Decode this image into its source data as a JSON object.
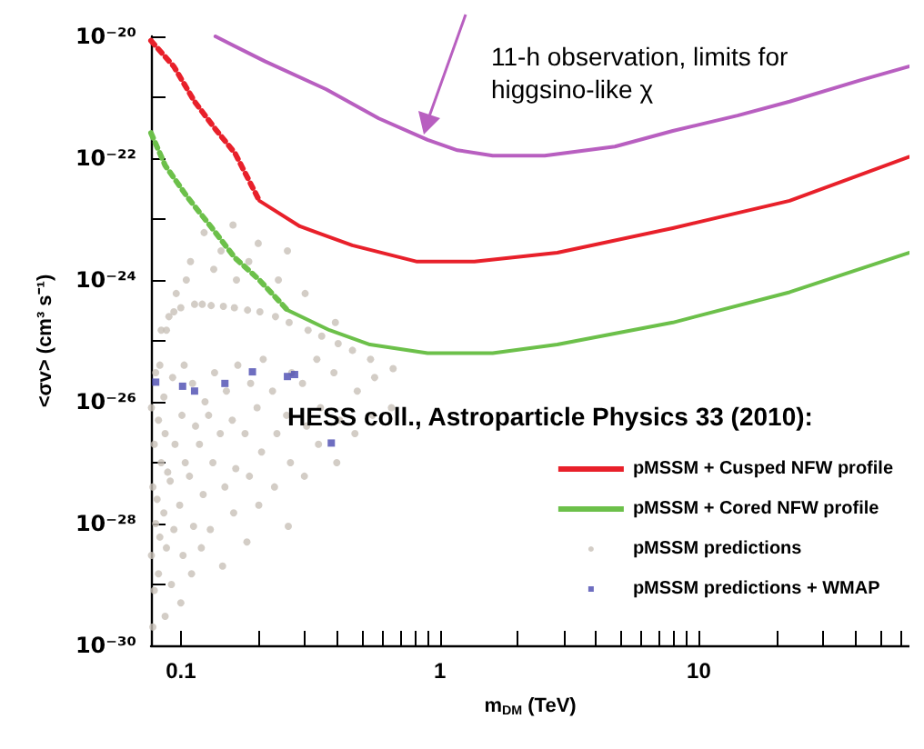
{
  "chart_data": {
    "type": "line",
    "xlabel": "m$_{DM}$ (TeV)",
    "ylabel": "<σv> (cm³ s⁻¹)",
    "log": "xy",
    "xlim": [
      0.0767,
      65
    ],
    "ylim": [
      1e-30,
      1e-20
    ],
    "xticks": [
      0.1,
      {
        "value": 0.2,
        "label": null
      },
      {
        "value": 0.3,
        "label": null
      },
      {
        "value": 0.4,
        "label": null
      },
      {
        "value": 0.5,
        "label": null
      },
      {
        "value": 0.6,
        "label": null
      },
      {
        "value": 0.7,
        "label": null
      },
      {
        "value": 0.8,
        "label": null
      },
      {
        "value": 0.9,
        "label": null
      },
      1,
      {
        "value": 2,
        "label": null
      },
      {
        "value": 3,
        "label": null
      },
      {
        "value": 4,
        "label": null
      },
      {
        "value": 5,
        "label": null
      },
      {
        "value": 6,
        "label": null
      },
      {
        "value": 7,
        "label": null
      },
      {
        "value": 8,
        "label": null
      },
      {
        "value": 9,
        "label": null
      },
      10,
      {
        "value": 20,
        "label": null
      },
      {
        "value": 30,
        "label": null
      },
      {
        "value": 40,
        "label": null
      },
      {
        "value": 50,
        "label": null
      },
      {
        "value": 60,
        "label": null
      }
    ],
    "yticks": [
      {
        "value": 1e-30,
        "label": "10⁻³⁰"
      },
      {
        "value": 1e-29,
        "label": null
      },
      {
        "value": 1e-28,
        "label": "10⁻²⁸"
      },
      {
        "value": 1e-27,
        "label": null
      },
      {
        "value": 1e-26,
        "label": "10⁻²⁶"
      },
      {
        "value": 1e-25,
        "label": null
      },
      {
        "value": 1e-24,
        "label": "10⁻²⁴"
      },
      {
        "value": 1e-23,
        "label": null
      },
      {
        "value": 1e-22,
        "label": "10⁻²²"
      },
      {
        "value": 1e-21,
        "label": null
      },
      {
        "value": 1e-20,
        "label": "10⁻²⁰"
      }
    ],
    "grid": false,
    "legend": "right",
    "annotations": [
      "11-h observation, limits for higgsino-like χ",
      "HESS coll., Astroparticle Physics 33 (2010):"
    ],
    "series": [
      {
        "color": "#b85fc0",
        "line_style": "solid",
        "marker": "none",
        "x": [
          0.136,
          0.211,
          0.364,
          0.581,
          0.897,
          1.17,
          1.6,
          2.54,
          4.74,
          7.93,
          14.1,
          22.4,
          41.9,
          64.7
        ],
        "values": [
          1e-20,
          3.9e-21,
          1.35e-21,
          4.5e-22,
          2e-22,
          1.35e-22,
          1.1e-22,
          1.1e-22,
          1.55e-22,
          2.8e-22,
          5e-22,
          8.5e-22,
          1.9e-21,
          3.2e-21
        ]
      },
      {
        "color": "#e8202a",
        "line_style": "dotted",
        "marker": "none",
        "x": [
          0.0767,
          0.094,
          0.113,
          0.136,
          0.162,
          0.201
        ],
        "values": [
          8.5e-21,
          3.2e-21,
          8.5e-22,
          3e-22,
          1.2e-22,
          2e-23
        ]
      },
      {
        "name": "pMSSM + Cusped NFW profile",
        "color": "#e8202a",
        "line_style": "solid",
        "marker": "none",
        "x": [
          0.201,
          0.288,
          0.459,
          0.817,
          1.36,
          2.84,
          7.93,
          22.4,
          64.7
        ],
        "values": [
          2e-23,
          7.6e-24,
          3.7e-24,
          2e-24,
          2e-24,
          2.8e-24,
          7.1e-24,
          2e-23,
          1.05e-22
        ]
      },
      {
        "color": "#6cc04a",
        "line_style": "dotted",
        "marker": "none",
        "x": [
          0.0767,
          0.087,
          0.106,
          0.132,
          0.162,
          0.201,
          0.258
        ],
        "values": [
          2.6e-22,
          7.6e-23,
          2.3e-23,
          7.1e-24,
          2.3e-24,
          1e-24,
          3.2e-25
        ]
      },
      {
        "name": "pMSSM + Cored NFW profile",
        "color": "#6cc04a",
        "line_style": "solid",
        "marker": "none",
        "x": [
          0.258,
          0.375,
          0.537,
          0.897,
          1.6,
          2.84,
          7.93,
          22.4,
          64.7
        ],
        "values": [
          3.2e-25,
          1.5e-25,
          8.7e-26,
          6.3e-26,
          6.3e-26,
          8.7e-26,
          2e-25,
          6.3e-25,
          2.8e-24
        ]
      },
      {
        "name": "pMSSM predictions",
        "type": "scatter",
        "marker": "circle",
        "color": "#c8c0b8",
        "x": [
          0.078,
          0.079,
          0.077,
          0.08,
          0.078,
          0.079,
          0.077,
          0.08,
          0.082,
          0.083,
          0.081,
          0.084,
          0.082,
          0.083,
          0.084,
          0.087,
          0.088,
          0.086,
          0.089,
          0.087,
          0.086,
          0.088,
          0.09,
          0.092,
          0.094,
          0.091,
          0.095,
          0.093,
          0.094,
          0.096,
          0.1,
          0.102,
          0.099,
          0.104,
          0.101,
          0.103,
          0.1,
          0.105,
          0.11,
          0.112,
          0.108,
          0.114,
          0.111,
          0.113,
          0.109,
          0.12,
          0.122,
          0.118,
          0.124,
          0.121,
          0.123,
          0.13,
          0.133,
          0.128,
          0.135,
          0.131,
          0.134,
          0.145,
          0.148,
          0.142,
          0.15,
          0.146,
          0.143,
          0.16,
          0.163,
          0.158,
          0.166,
          0.161,
          0.164,
          0.159,
          0.18,
          0.184,
          0.177,
          0.186,
          0.181,
          0.183,
          0.2,
          0.205,
          0.197,
          0.208,
          0.202,
          0.199,
          0.23,
          0.235,
          0.226,
          0.232,
          0.238,
          0.26,
          0.265,
          0.256,
          0.268,
          0.262,
          0.258,
          0.3,
          0.306,
          0.295,
          0.31,
          0.302,
          0.34,
          0.346,
          0.335,
          0.35,
          0.4,
          0.41,
          0.39,
          0.405,
          0.395,
          0.47,
          0.48,
          0.46,
          0.55,
          0.56,
          0.54,
          0.65,
          0.66
        ],
        "values": [
          2e-30,
          8e-30,
          3e-29,
          1e-28,
          4e-28,
          2e-27,
          8e-27,
          3e-26,
          1.5e-29,
          6e-29,
          2.5e-28,
          1e-27,
          5e-27,
          4e-26,
          1.5e-25,
          3e-30,
          4e-29,
          1.5e-28,
          7e-28,
          3e-27,
          1.2e-26,
          1.5e-25,
          2.5e-25,
          1e-29,
          8e-29,
          5e-28,
          2e-27,
          2.5e-26,
          3e-25,
          6e-25,
          5e-30,
          3e-29,
          2e-28,
          1e-27,
          6e-27,
          4e-26,
          3.5e-25,
          1e-24,
          1.5e-29,
          9e-29,
          6e-28,
          4e-27,
          2e-26,
          4e-25,
          2e-24,
          4e-29,
          3e-28,
          2e-27,
          1e-26,
          4e-25,
          6e-24,
          8e-29,
          1e-27,
          6e-27,
          3e-26,
          3.8e-25,
          1.5e-24,
          2e-29,
          4e-28,
          3e-27,
          1.5e-26,
          3.7e-25,
          3e-24,
          1.5e-28,
          8e-28,
          5e-27,
          4e-26,
          3.5e-25,
          1e-24,
          8e-24,
          5e-29,
          6e-28,
          3e-27,
          2e-26,
          3.2e-25,
          2e-24,
          2e-28,
          1.5e-27,
          8e-27,
          5e-26,
          3e-25,
          4e-24,
          4e-28,
          3e-27,
          1.5e-26,
          2.5e-25,
          1e-24,
          9e-29,
          1e-27,
          6e-27,
          3e-26,
          2e-25,
          3e-24,
          6e-28,
          4e-27,
          2e-26,
          1.5e-25,
          6e-25,
          2e-27,
          8e-27,
          5e-26,
          1.2e-25,
          1e-27,
          5e-27,
          3e-26,
          9e-26,
          2e-25,
          3e-27,
          1.5e-26,
          7e-26,
          6e-27,
          2.5e-26,
          5e-26,
          8e-27,
          3.5e-26
        ]
      },
      {
        "name": "pMSSM predictions + WMAP",
        "type": "scatter",
        "marker": "square",
        "color": "#4a4ab0",
        "x": [
          0.08,
          0.1016,
          0.113,
          0.148,
          0.189,
          0.258,
          0.275,
          0.381
        ],
        "values": [
          2.1e-26,
          1.8e-26,
          1.5e-26,
          2e-26,
          3.1e-26,
          2.6e-26,
          2.8e-26,
          2.1e-27
        ]
      }
    ]
  }
}
